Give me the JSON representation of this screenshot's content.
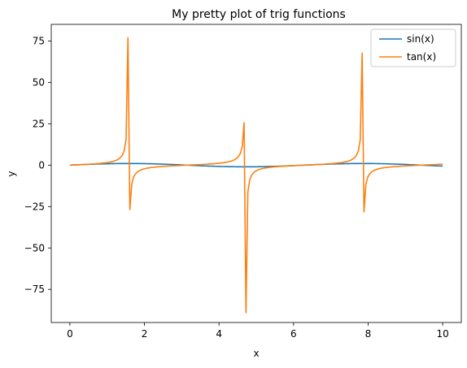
{
  "chart_data": {
    "type": "line",
    "title": "My pretty plot of trig functions",
    "xlabel": "x",
    "ylabel": "y",
    "xlim": [
      -0.5,
      10.5
    ],
    "ylim": [
      -95,
      85
    ],
    "x_ticks": [
      0,
      2,
      4,
      6,
      8,
      10
    ],
    "y_ticks": [
      -75,
      -50,
      -25,
      0,
      25,
      50,
      75
    ],
    "x_tick_labels": [
      "0",
      "2",
      "4",
      "6",
      "8",
      "10"
    ],
    "y_tick_labels": [
      "−75",
      "−50",
      "−25",
      "0",
      "25",
      "50",
      "75"
    ],
    "grid": false,
    "legend_position": "top-right",
    "x_domain": [
      0,
      10
    ],
    "num_samples": 200,
    "series": [
      {
        "name": "sin(x)",
        "function": "sin",
        "color": "#1f77b4"
      },
      {
        "name": "tan(x)",
        "function": "tan",
        "color": "#ff7f0e"
      }
    ]
  }
}
